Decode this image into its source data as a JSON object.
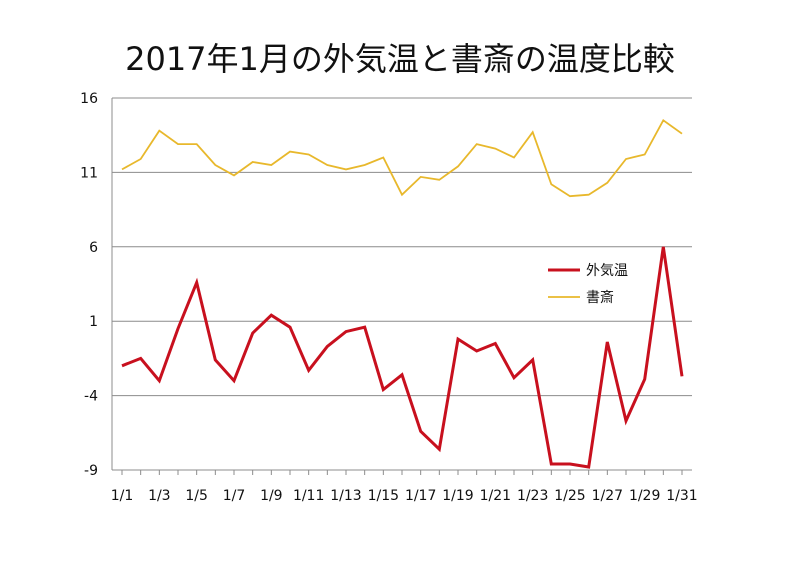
{
  "chart_data": {
    "type": "line",
    "title": "2017年1月の外気温と書斎の温度比較",
    "xlabel": "",
    "ylabel": "",
    "ylim": [
      -9,
      16
    ],
    "yticks": [
      16,
      11,
      6,
      1,
      -4,
      -9
    ],
    "categories": [
      "1/1",
      "1/2",
      "1/3",
      "1/4",
      "1/5",
      "1/6",
      "1/7",
      "1/8",
      "1/9",
      "1/10",
      "1/11",
      "1/12",
      "1/13",
      "1/14",
      "1/15",
      "1/16",
      "1/17",
      "1/18",
      "1/19",
      "1/20",
      "1/21",
      "1/22",
      "1/23",
      "1/24",
      "1/25",
      "1/26",
      "1/27",
      "1/28",
      "1/29",
      "1/30",
      "1/31"
    ],
    "xtick_labels": [
      "1/1",
      "1/3",
      "1/5",
      "1/7",
      "1/9",
      "1/11",
      "1/13",
      "1/15",
      "1/17",
      "1/19",
      "1/21",
      "1/23",
      "1/25",
      "1/27",
      "1/29",
      "1/31"
    ],
    "legend_position": "right",
    "series": [
      {
        "name": "外気温",
        "color": "#c8101e",
        "values": [
          -2.0,
          -1.5,
          -3.0,
          0.5,
          3.6,
          -1.6,
          -3.0,
          0.2,
          1.4,
          0.6,
          -2.3,
          -0.7,
          0.3,
          0.6,
          -3.6,
          -2.6,
          -6.4,
          -7.6,
          -0.2,
          -1.0,
          -0.5,
          -2.8,
          -1.6,
          -8.6,
          -8.6,
          -8.8,
          -0.4,
          -5.7,
          -2.9,
          6.0,
          -2.7
        ]
      },
      {
        "name": "書斎",
        "color": "#e8b82c",
        "values": [
          11.2,
          11.9,
          13.8,
          12.9,
          12.9,
          11.5,
          10.8,
          11.7,
          11.5,
          12.4,
          12.2,
          11.5,
          11.2,
          11.5,
          12.0,
          9.5,
          10.7,
          10.5,
          11.4,
          12.9,
          12.6,
          12.0,
          13.7,
          10.2,
          9.4,
          9.5,
          10.3,
          11.9,
          12.2,
          14.5,
          13.6
        ]
      }
    ]
  }
}
